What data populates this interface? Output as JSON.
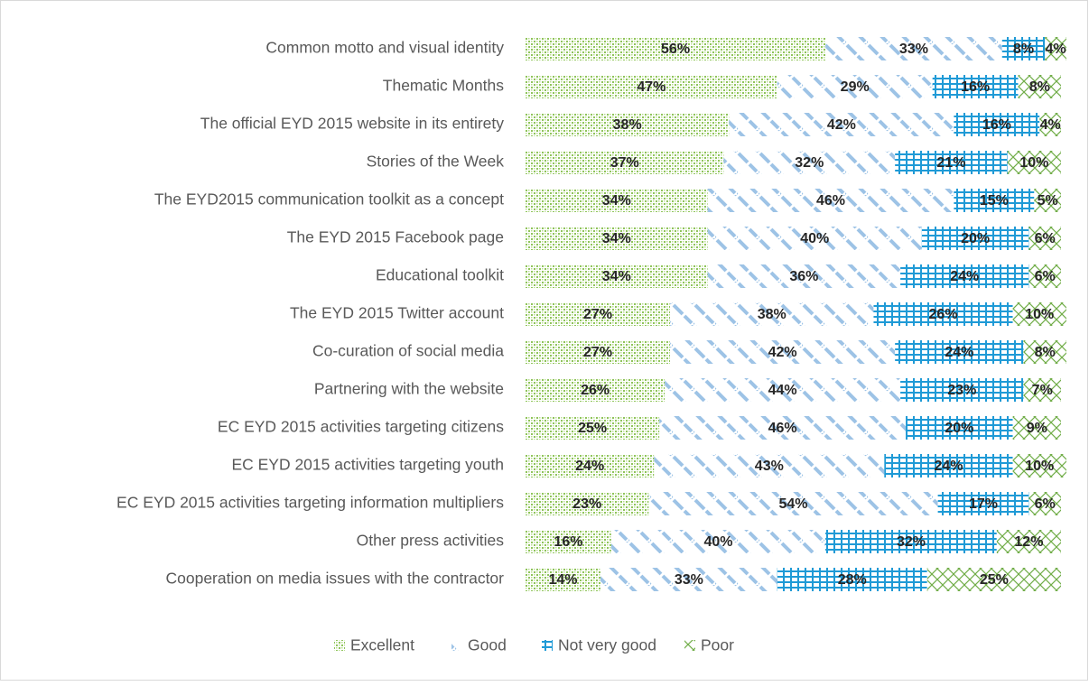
{
  "chart_data": {
    "type": "stacked-bar-horizontal",
    "categories": [
      "Common motto and visual identity",
      "Thematic Months",
      "The official EYD 2015 website in its entirety",
      "Stories of the Week",
      "The EYD2015 communication toolkit as a concept",
      "The EYD 2015 Facebook page",
      "Educational toolkit",
      "The EYD 2015 Twitter account",
      "Co-curation of social media",
      "Partnering with the website",
      "EC EYD 2015 activities targeting citizens",
      "EC EYD 2015 activities targeting youth",
      "EC EYD 2015 activities targeting information multipliers",
      "Other press activities",
      "Cooperation on media issues with the contractor"
    ],
    "series": [
      {
        "name": "Excellent",
        "color": "#8fc45a",
        "values": [
          56,
          47,
          38,
          37,
          34,
          34,
          34,
          27,
          27,
          26,
          25,
          24,
          23,
          16,
          14
        ],
        "value_labels": [
          "56%",
          "47%",
          "38%",
          "37%",
          "34%",
          "34%",
          "34%",
          "27%",
          "27%",
          "26%",
          "25%",
          "24%",
          "23%",
          "16%",
          "14%"
        ]
      },
      {
        "name": "Good",
        "color": "#9dc3e6",
        "values": [
          33,
          29,
          42,
          32,
          46,
          40,
          36,
          38,
          42,
          44,
          46,
          43,
          54,
          40,
          33
        ],
        "value_labels": [
          "33%",
          "29%",
          "42%",
          "32%",
          "46%",
          "40%",
          "36%",
          "38%",
          "42%",
          "44%",
          "46%",
          "43%",
          "54%",
          "40%",
          "33%"
        ]
      },
      {
        "name": "Not very good",
        "color": "#1f9ad6",
        "values": [
          8,
          16,
          16,
          21,
          15,
          20,
          24,
          26,
          24,
          23,
          20,
          24,
          17,
          32,
          28
        ],
        "value_labels": [
          "8%",
          "16%",
          "16%",
          "21%",
          "15%",
          "20%",
          "24%",
          "26%",
          "24%",
          "23%",
          "20%",
          "24%",
          "17%",
          "32%",
          "28%"
        ]
      },
      {
        "name": "Poor",
        "color": "#70ad47",
        "values": [
          4,
          8,
          4,
          10,
          5,
          6,
          6,
          10,
          8,
          7,
          9,
          10,
          6,
          12,
          25
        ],
        "value_labels": [
          "4%",
          "8%",
          "4%",
          "10%",
          "5%",
          "6%",
          "6%",
          "10%",
          "8%",
          "7%",
          "9%",
          "10%",
          "6%",
          "12%",
          "25%"
        ]
      }
    ],
    "xlim": [
      0,
      100
    ],
    "legend": "bottom"
  }
}
